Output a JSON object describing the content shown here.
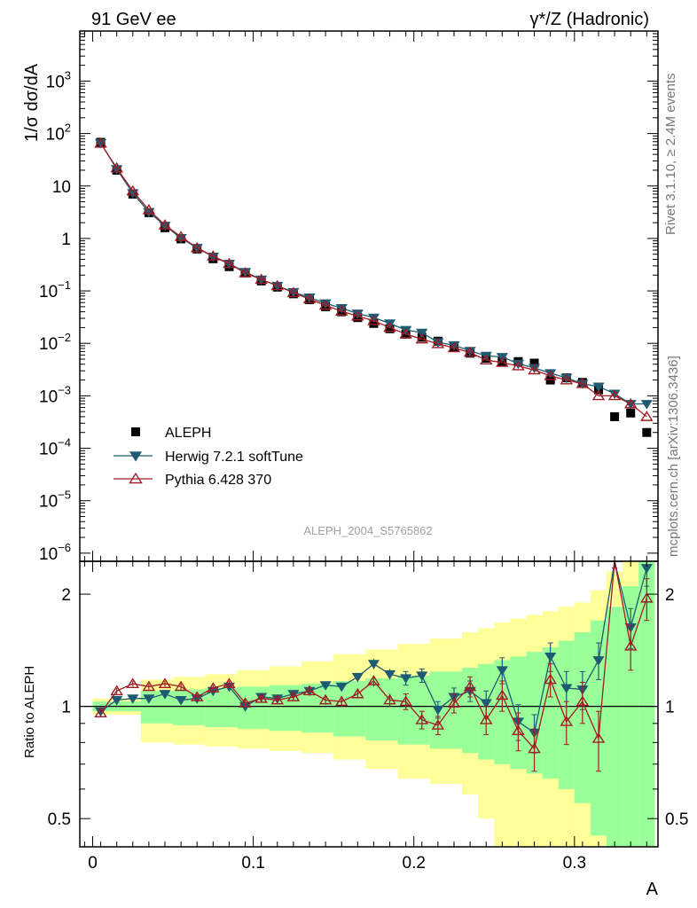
{
  "header": {
    "left_title": "91 GeV ee",
    "right_title": "γ*/Z (Hadronic)"
  },
  "side_labels": {
    "rivet": "Rivet 3.1.10, ≥ 2.4M events",
    "mcplots": "mcplots.cern.ch [arXiv:1306.3436]"
  },
  "watermark": "ALEPH_2004_S5765862",
  "colors": {
    "data": "#000000",
    "herwig": "#1f5a73",
    "pythia": "#a01c24",
    "band_outer": "#ffff99",
    "band_inner": "#99ff99"
  },
  "chart_data": [
    {
      "type": "scatter",
      "name": "main",
      "ylabel": "1/σ dσ/dA",
      "yscale": "log",
      "xlim": [
        -0.008,
        0.352
      ],
      "ylim": [
        7e-07,
        9000
      ],
      "yticks": [
        {
          "v": 1e-06,
          "m": "10",
          "e": "−6"
        },
        {
          "v": 1e-05,
          "m": "10",
          "e": "−5"
        },
        {
          "v": 0.0001,
          "m": "10",
          "e": "−4"
        },
        {
          "v": 0.001,
          "m": "10",
          "e": "−3"
        },
        {
          "v": 0.01,
          "m": "10",
          "e": "−2"
        },
        {
          "v": 0.1,
          "m": "10",
          "e": "−1"
        },
        {
          "v": 1,
          "m": "1",
          "e": ""
        },
        {
          "v": 10,
          "m": "10",
          "e": ""
        },
        {
          "v": 100,
          "m": "10",
          "e": "2"
        },
        {
          "v": 1000,
          "m": "10",
          "e": "3"
        }
      ],
      "legend": [
        {
          "key": "data",
          "label": "ALEPH"
        },
        {
          "key": "herwig",
          "label": "Herwig 7.2.1 softTune"
        },
        {
          "key": "pythia",
          "label": "Pythia 6.428 370"
        }
      ],
      "x": [
        0.005,
        0.015,
        0.025,
        0.035,
        0.045,
        0.055,
        0.065,
        0.075,
        0.085,
        0.095,
        0.105,
        0.115,
        0.125,
        0.135,
        0.145,
        0.155,
        0.165,
        0.175,
        0.185,
        0.195,
        0.205,
        0.215,
        0.225,
        0.235,
        0.245,
        0.255,
        0.265,
        0.275,
        0.285,
        0.295,
        0.305,
        0.315,
        0.325,
        0.335,
        0.345
      ],
      "series": [
        {
          "key": "data",
          "name": "ALEPH",
          "values": [
            68,
            20,
            7,
            3.1,
            1.6,
            0.98,
            0.63,
            0.41,
            0.29,
            0.22,
            0.155,
            0.118,
            0.088,
            0.068,
            0.05,
            0.04,
            0.031,
            0.024,
            0.019,
            0.015,
            0.013,
            0.011,
            0.0085,
            0.0065,
            0.0052,
            0.0045,
            0.0045,
            0.0042,
            0.002,
            0.0022,
            0.0018,
            0.0013,
            0.0004,
            0.00047,
            0.0002
          ]
        },
        {
          "key": "herwig",
          "name": "Herwig 7.2.1 softTune",
          "values": [
            66,
            21,
            7.3,
            3.2,
            1.75,
            1.02,
            0.66,
            0.45,
            0.33,
            0.23,
            0.165,
            0.125,
            0.095,
            0.075,
            0.058,
            0.047,
            0.037,
            0.031,
            0.024,
            0.018,
            0.016,
            0.0105,
            0.0092,
            0.0072,
            0.0058,
            0.0055,
            0.0041,
            0.0034,
            0.0027,
            0.0022,
            0.0017,
            0.0015,
            0.0011,
            0.0007,
            0.0007
          ]
        },
        {
          "key": "pythia",
          "name": "Pythia 6.428 370",
          "values": [
            65,
            22,
            8,
            3.5,
            1.8,
            1.08,
            0.66,
            0.46,
            0.33,
            0.22,
            0.165,
            0.125,
            0.092,
            0.07,
            0.053,
            0.041,
            0.033,
            0.027,
            0.02,
            0.015,
            0.012,
            0.0098,
            0.0082,
            0.0067,
            0.0048,
            0.0043,
            0.0037,
            0.0031,
            0.0024,
            0.002,
            0.0017,
            0.001,
            0.001,
            0.0007,
            0.0004
          ]
        }
      ]
    },
    {
      "type": "line",
      "name": "ratio",
      "ylabel": "Ratio to ALEPH",
      "xlabel": "A",
      "yscale": "log",
      "xlim": [
        -0.008,
        0.352
      ],
      "ylim": [
        0.42,
        2.45
      ],
      "yticks": [
        0.5,
        1,
        2
      ],
      "ytick_labels": [
        "0.5",
        "1",
        "2"
      ],
      "xticks": [
        0,
        0.1,
        0.2,
        0.3
      ],
      "xtick_labels": [
        "0",
        "0.1",
        "0.2",
        "0.3"
      ],
      "x": [
        0.005,
        0.015,
        0.025,
        0.035,
        0.045,
        0.055,
        0.065,
        0.075,
        0.085,
        0.095,
        0.105,
        0.115,
        0.125,
        0.135,
        0.145,
        0.155,
        0.165,
        0.175,
        0.185,
        0.195,
        0.205,
        0.215,
        0.225,
        0.235,
        0.245,
        0.255,
        0.265,
        0.275,
        0.285,
        0.295,
        0.305,
        0.315,
        0.325,
        0.335,
        0.345
      ],
      "band_edges": [
        0.0,
        0.03,
        0.05,
        0.07,
        0.09,
        0.11,
        0.13,
        0.15,
        0.17,
        0.19,
        0.21,
        0.23,
        0.24,
        0.25,
        0.26,
        0.27,
        0.28,
        0.29,
        0.3,
        0.31,
        0.32,
        0.33,
        0.34,
        0.35
      ],
      "band_outer_lo": [
        0.95,
        0.8,
        0.79,
        0.78,
        0.77,
        0.76,
        0.75,
        0.72,
        0.68,
        0.64,
        0.62,
        0.58,
        0.5,
        0.42,
        0.4,
        0.4,
        0.4,
        0.4,
        0.4,
        0.4,
        0.4,
        0.4,
        0.4
      ],
      "band_outer_hi": [
        1.05,
        1.18,
        1.2,
        1.22,
        1.25,
        1.28,
        1.32,
        1.38,
        1.42,
        1.47,
        1.52,
        1.58,
        1.62,
        1.68,
        1.72,
        1.76,
        1.8,
        1.85,
        1.9,
        2.05,
        2.3,
        2.45,
        2.45
      ],
      "band_inner_lo": [
        0.97,
        0.9,
        0.89,
        0.88,
        0.87,
        0.86,
        0.85,
        0.83,
        0.81,
        0.79,
        0.77,
        0.75,
        0.72,
        0.7,
        0.68,
        0.66,
        0.64,
        0.6,
        0.55,
        0.45,
        0.42,
        0.42,
        0.42
      ],
      "band_inner_hi": [
        1.03,
        1.1,
        1.11,
        1.12,
        1.13,
        1.14,
        1.15,
        1.17,
        1.19,
        1.21,
        1.24,
        1.27,
        1.3,
        1.33,
        1.36,
        1.4,
        1.44,
        1.5,
        1.58,
        1.7,
        1.85,
        2.1,
        2.45
      ],
      "series": [
        {
          "key": "herwig",
          "name": "Herwig 7.2.1 softTune",
          "values": [
            0.97,
            1.04,
            1.05,
            1.05,
            1.08,
            1.04,
            1.05,
            1.1,
            1.13,
            1.0,
            1.06,
            1.05,
            1.08,
            1.1,
            1.14,
            1.13,
            1.2,
            1.3,
            1.22,
            1.19,
            1.21,
            0.98,
            1.06,
            1.1,
            1.02,
            1.25,
            0.91,
            0.85,
            1.36,
            1.12,
            1.11,
            1.33,
            2.55,
            1.63,
            2.35
          ],
          "errors": [
            0.02,
            0.02,
            0.02,
            0.02,
            0.02,
            0.02,
            0.02,
            0.02,
            0.02,
            0.02,
            0.02,
            0.02,
            0.02,
            0.02,
            0.02,
            0.03,
            0.03,
            0.04,
            0.04,
            0.05,
            0.05,
            0.05,
            0.06,
            0.07,
            0.08,
            0.1,
            0.1,
            0.1,
            0.12,
            0.12,
            0.13,
            0.15,
            0.2,
            0.2,
            0.25
          ]
        },
        {
          "key": "pythia",
          "name": "Pythia 6.428 370",
          "values": [
            0.96,
            1.1,
            1.15,
            1.13,
            1.15,
            1.13,
            1.06,
            1.12,
            1.15,
            1.02,
            1.05,
            1.04,
            1.06,
            1.1,
            1.04,
            1.03,
            1.08,
            1.17,
            1.04,
            1.03,
            0.92,
            0.89,
            1.02,
            1.13,
            0.92,
            1.07,
            0.86,
            0.77,
            1.18,
            0.91,
            1.03,
            0.82,
            2.55,
            1.45,
            1.95
          ],
          "errors": [
            0.02,
            0.02,
            0.02,
            0.02,
            0.02,
            0.02,
            0.02,
            0.02,
            0.02,
            0.02,
            0.02,
            0.02,
            0.02,
            0.02,
            0.03,
            0.03,
            0.03,
            0.04,
            0.04,
            0.05,
            0.05,
            0.05,
            0.06,
            0.07,
            0.08,
            0.1,
            0.1,
            0.1,
            0.12,
            0.12,
            0.13,
            0.15,
            0.2,
            0.2,
            0.25
          ]
        }
      ]
    }
  ]
}
